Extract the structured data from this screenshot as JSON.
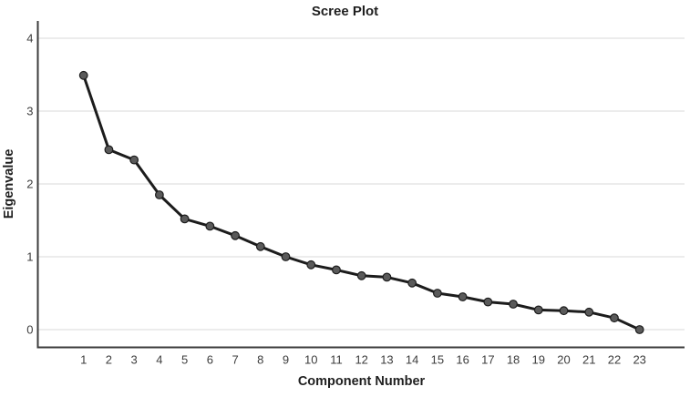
{
  "chart_data": {
    "type": "line",
    "title": "Scree Plot",
    "xlabel": "Component Number",
    "ylabel": "Eigenvalue",
    "x": [
      1,
      2,
      3,
      4,
      5,
      6,
      7,
      8,
      9,
      10,
      11,
      12,
      13,
      14,
      15,
      16,
      17,
      18,
      19,
      20,
      21,
      22,
      23
    ],
    "values": [
      3.49,
      2.47,
      2.33,
      1.85,
      1.52,
      1.42,
      1.29,
      1.14,
      1.0,
      0.89,
      0.82,
      0.74,
      0.72,
      0.64,
      0.5,
      0.45,
      0.38,
      0.35,
      0.27,
      0.26,
      0.24,
      0.16,
      0.0
    ],
    "yticks": [
      0,
      1,
      2,
      3,
      4
    ],
    "ylim": [
      0,
      4
    ],
    "grid": "horizontal",
    "legend": "none",
    "colors": {
      "line": "#1c1c1c",
      "marker_fill": "#5a5a5a",
      "marker_stroke": "#1c1c1c",
      "gridline": "#dadada",
      "axis": "#3c3c3c",
      "tick_text": "#3d3d3d",
      "background": "#ffffff"
    }
  }
}
